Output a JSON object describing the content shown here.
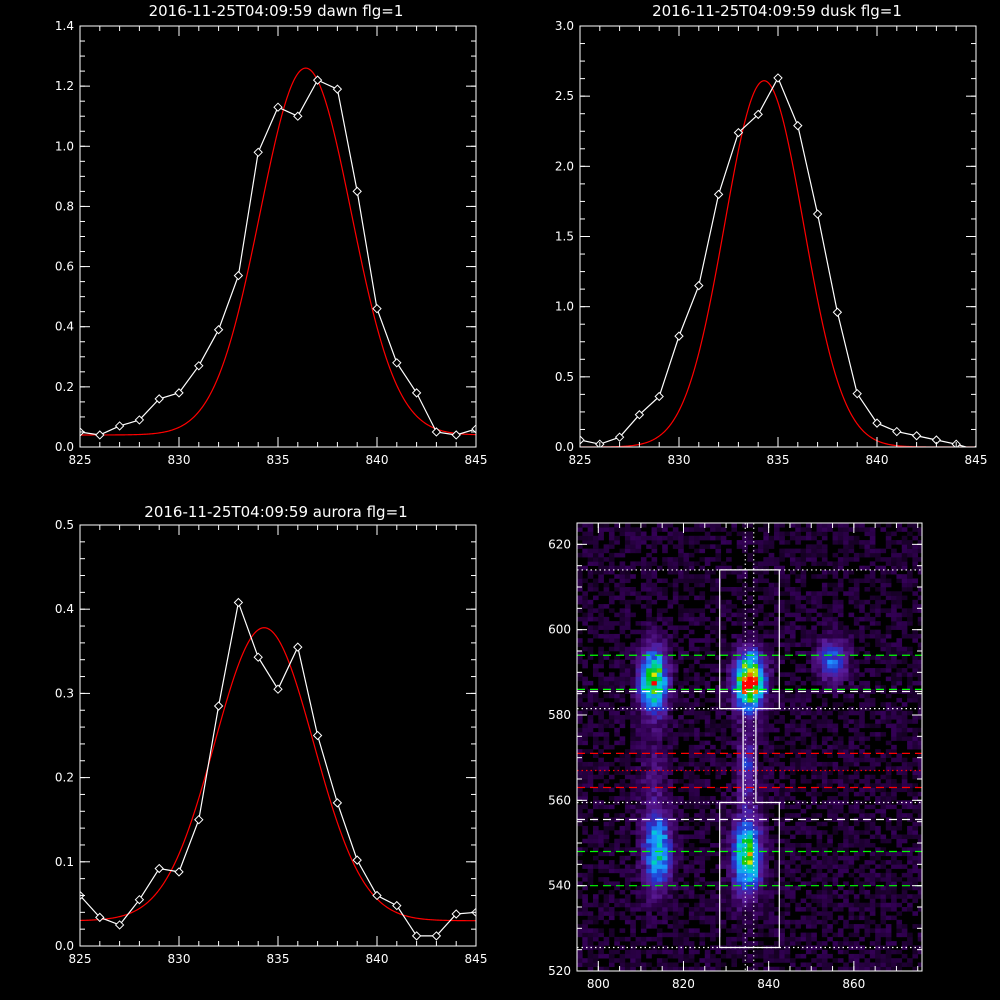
{
  "chart_data": [
    {
      "type": "line",
      "title": "2016-11-25T04:09:59 dawn flg=1",
      "xlim": [
        825,
        845
      ],
      "ylim": [
        0.0,
        1.4
      ],
      "x_ticks": [
        "825",
        "830",
        "835",
        "840",
        "845"
      ],
      "y_ticks": [
        "0.0",
        "0.2",
        "0.4",
        "0.6",
        "0.8",
        "1.0",
        "1.2",
        "1.4"
      ],
      "series": [
        {
          "color": "#ffffff",
          "marker": "diamond",
          "x": [
            825,
            826,
            827,
            828,
            829,
            830,
            831,
            832,
            833,
            834,
            835,
            836,
            837,
            838,
            839,
            840,
            841,
            842,
            843,
            844,
            845
          ],
          "y": [
            0.05,
            0.04,
            0.07,
            0.09,
            0.16,
            0.18,
            0.27,
            0.39,
            0.57,
            0.98,
            1.13,
            1.1,
            1.22,
            1.19,
            0.85,
            0.46,
            0.28,
            0.18,
            0.05,
            0.04,
            0.06
          ]
        },
        {
          "color": "#ff0000",
          "fit": {
            "peak": 1.22,
            "center": 836.4,
            "sigma": 2.3,
            "base": 0.04
          }
        }
      ]
    },
    {
      "type": "line",
      "title": "2016-11-25T04:09:59 dusk flg=1",
      "xlim": [
        825,
        845
      ],
      "ylim": [
        0.0,
        3.0
      ],
      "x_ticks": [
        "825",
        "830",
        "835",
        "840",
        "845"
      ],
      "y_ticks": [
        "0.0",
        "0.5",
        "1.0",
        "1.5",
        "2.0",
        "2.5",
        "3.0"
      ],
      "series": [
        {
          "color": "#ffffff",
          "marker": "diamond",
          "x": [
            825,
            826,
            827,
            828,
            829,
            830,
            831,
            832,
            833,
            834,
            835,
            836,
            837,
            838,
            839,
            840,
            841,
            842,
            843,
            844,
            845
          ],
          "y": [
            0.05,
            0.02,
            0.07,
            0.23,
            0.36,
            0.79,
            1.15,
            1.8,
            2.24,
            2.37,
            2.63,
            2.29,
            1.66,
            0.96,
            0.38,
            0.17,
            0.11,
            0.08,
            0.05,
            0.02,
            -0.02
          ]
        },
        {
          "color": "#ff0000",
          "fit": {
            "peak": 2.61,
            "center": 834.3,
            "sigma": 2.0,
            "base": 0.0
          }
        }
      ]
    },
    {
      "type": "line",
      "title": "2016-11-25T04:09:59 aurora flg=1",
      "xlim": [
        825,
        845
      ],
      "ylim": [
        0.0,
        0.5
      ],
      "x_ticks": [
        "825",
        "830",
        "835",
        "840",
        "845"
      ],
      "y_ticks": [
        "0.0",
        "0.1",
        "0.2",
        "0.3",
        "0.4",
        "0.5"
      ],
      "series": [
        {
          "color": "#ffffff",
          "marker": "diamond",
          "x": [
            825,
            826,
            827,
            828,
            829,
            830,
            831,
            832,
            833,
            834,
            835,
            836,
            837,
            838,
            839,
            840,
            841,
            842,
            843,
            844,
            845
          ],
          "y": [
            0.06,
            0.034,
            0.025,
            0.055,
            0.092,
            0.088,
            0.15,
            0.285,
            0.408,
            0.343,
            0.305,
            0.355,
            0.25,
            0.17,
            0.102,
            0.06,
            0.048,
            0.012,
            0.012,
            0.038,
            0.04
          ]
        },
        {
          "color": "#ff0000",
          "fit": {
            "peak": 0.348,
            "center": 834.3,
            "sigma": 2.5,
            "base": 0.03
          }
        }
      ]
    },
    {
      "type": "heatmap",
      "title": "",
      "xlim": [
        795,
        876
      ],
      "ylim": [
        520,
        625
      ],
      "x_ticks": [
        "800",
        "820",
        "840",
        "860"
      ],
      "y_ticks": [
        "520",
        "540",
        "560",
        "580",
        "600",
        "620"
      ],
      "grid": false,
      "colormap": [
        "#000000",
        "#330055",
        "#5a1a96",
        "#2233cc",
        "#1e90ff",
        "#00d2d2",
        "#00c800",
        "#e6e600",
        "#ff0000"
      ],
      "blobs": [
        {
          "x": 813,
          "y": 588,
          "sx": 2.2,
          "sy": 5.0,
          "peak": 0.8
        },
        {
          "x": 835.5,
          "y": 588,
          "sx": 2.3,
          "sy": 4.5,
          "peak": 1.0
        },
        {
          "x": 835,
          "y": 547,
          "sx": 2.2,
          "sy": 6.0,
          "peak": 0.75
        },
        {
          "x": 814,
          "y": 548,
          "sx": 2.2,
          "sy": 6.0,
          "peak": 0.55
        },
        {
          "x": 855,
          "y": 593,
          "sx": 2.5,
          "sy": 3.5,
          "peak": 0.38
        },
        {
          "x": 835,
          "y": 568,
          "sx": 1.5,
          "sy": 6.0,
          "peak": 0.28
        },
        {
          "x": 813,
          "y": 566,
          "sx": 2.0,
          "sy": 8.0,
          "peak": 0.12
        }
      ],
      "h_lines": [
        {
          "y": 614,
          "color": "#ffffff",
          "style": "dotted"
        },
        {
          "y": 594,
          "color": "#00ff00",
          "style": "dashed"
        },
        {
          "y": 586,
          "color": "#00ff00",
          "style": "dashed"
        },
        {
          "y": 585.5,
          "color": "#ffffff",
          "style": "dashed"
        },
        {
          "y": 581.5,
          "color": "#ffffff",
          "style": "dotted"
        },
        {
          "y": 571,
          "color": "#ff0000",
          "style": "dashed"
        },
        {
          "y": 567,
          "color": "#ff0000",
          "style": "dotted"
        },
        {
          "y": 563,
          "color": "#ff0000",
          "style": "dashed"
        },
        {
          "y": 559.5,
          "color": "#ffffff",
          "style": "dotted"
        },
        {
          "y": 555.5,
          "color": "#ffffff",
          "style": "dashed"
        },
        {
          "y": 548,
          "color": "#00ff00",
          "style": "dashed"
        },
        {
          "y": 540,
          "color": "#00ff00",
          "style": "dashed"
        },
        {
          "y": 525.5,
          "color": "#ffffff",
          "style": "dotted"
        }
      ],
      "v_lines": [
        {
          "x": 834.5,
          "color": "#ffffff",
          "style": "dotted"
        },
        {
          "x": 836.5,
          "color": "#ffffff",
          "style": "dotted"
        }
      ],
      "region_outline": [
        [
          828.5,
          525.5
        ],
        [
          828.5,
          559.5
        ],
        [
          834,
          559.5
        ],
        [
          834,
          581.5
        ],
        [
          828.5,
          581.5
        ],
        [
          828.5,
          614
        ],
        [
          842.5,
          614
        ],
        [
          842.5,
          581.5
        ],
        [
          837,
          581.5
        ],
        [
          837,
          559.5
        ],
        [
          842.5,
          559.5
        ],
        [
          842.5,
          525.5
        ]
      ]
    }
  ]
}
